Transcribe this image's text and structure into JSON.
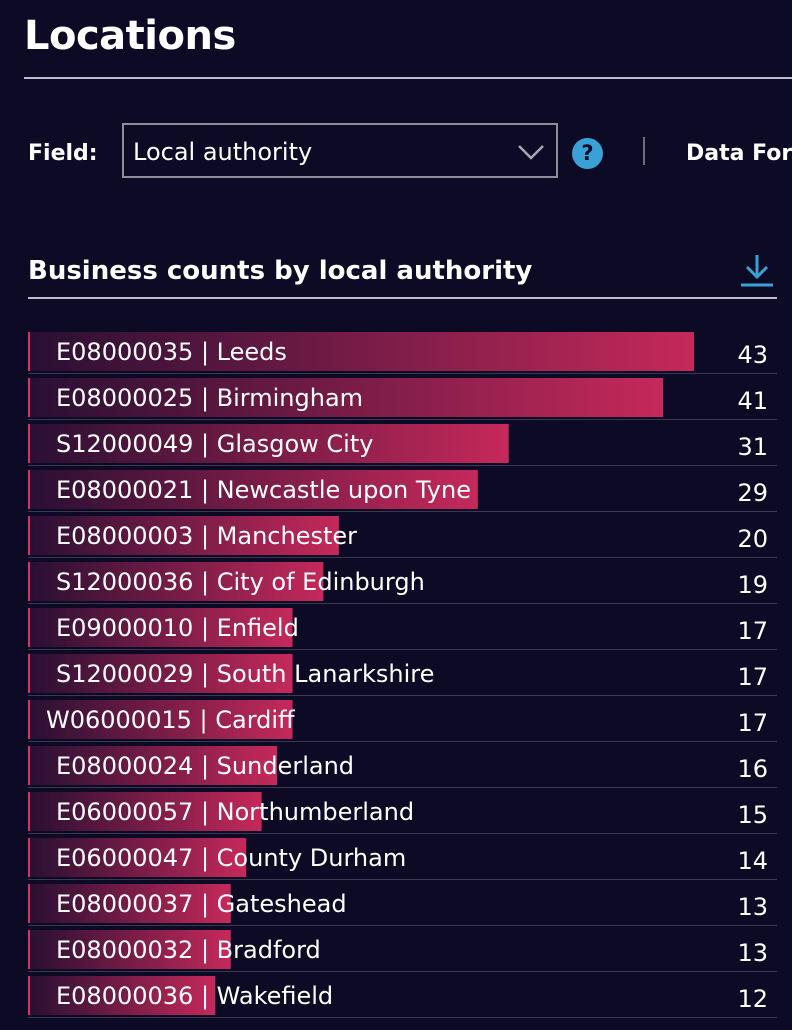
{
  "header": {
    "title": "Locations"
  },
  "controls": {
    "field_label": "Field:",
    "field_value": "Local authority",
    "help_glyph": "?",
    "data_label": "Data For"
  },
  "section": {
    "title": "Business counts by local authority"
  },
  "icons": {
    "select": "chevron-down-icon",
    "help": "help-icon",
    "download": "download-icon"
  },
  "colors": {
    "background": "#0d0a26",
    "bar_start": "#2a0f33",
    "bar_end": "#c5295a",
    "row_marker": "#d6325f",
    "help": "#3aa1d6",
    "download": "#3aa1d6"
  },
  "chart_data": {
    "type": "bar",
    "orientation": "horizontal",
    "title": "Business counts by local authority",
    "categories": [
      "E08000035 | Leeds",
      "E08000025 | Birmingham",
      "S12000049 | Glasgow City",
      "E08000021 | Newcastle upon Tyne",
      "E08000003 | Manchester",
      "S12000036 | City of Edinburgh",
      "E09000010 | Enfield",
      "S12000029 | South Lanarkshire",
      "W06000015 | Cardiff",
      "E08000024 | Sunderland",
      "E06000057 | Northumberland",
      "E06000047 | County Durham",
      "E08000037 | Gateshead",
      "E08000032 | Bradford",
      "E08000036 | Wakefield"
    ],
    "values": [
      43,
      41,
      31,
      29,
      20,
      19,
      17,
      17,
      17,
      16,
      15,
      14,
      13,
      13,
      12
    ],
    "xlim": [
      0,
      43
    ],
    "grid": false,
    "legend": "none"
  }
}
